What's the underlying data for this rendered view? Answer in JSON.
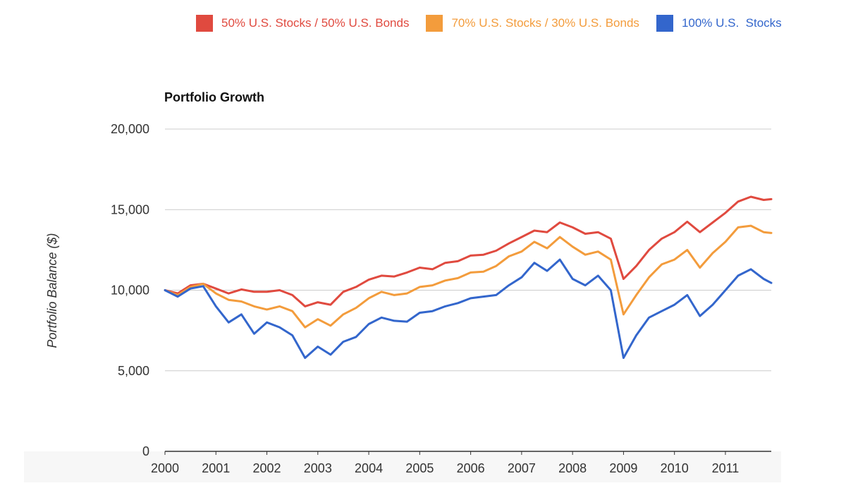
{
  "legend": [
    {
      "label": "50% U.S. Stocks / 50% U.S. Bonds",
      "color": "#e04a3f",
      "icon": "red-square"
    },
    {
      "label": "70% U.S. Stocks / 30% U.S. Bonds",
      "color": "#f39c3c",
      "icon": "orange-square"
    },
    {
      "label": "100% U.S.  Stocks",
      "color": "#3366cc",
      "icon": "blue-square"
    }
  ],
  "chart_data": {
    "type": "line",
    "title": "Portfolio Growth",
    "xlabel": "",
    "ylabel": "Portfolio Balance ($)",
    "ylim": [
      0,
      20000
    ],
    "xlim": [
      2000,
      2011.9
    ],
    "yticks": [
      0,
      5000,
      10000,
      15000,
      20000
    ],
    "ytick_labels": [
      "0",
      "5,000",
      "10,000",
      "15,000",
      "20,000"
    ],
    "xticks": [
      2000,
      2001,
      2002,
      2003,
      2004,
      2005,
      2006,
      2007,
      2008,
      2009,
      2010,
      2011
    ],
    "xtick_labels": [
      "2000",
      "2001",
      "2002",
      "2003",
      "2004",
      "2005",
      "2006",
      "2007",
      "2008",
      "2009",
      "2010",
      "2011"
    ],
    "grid": true,
    "x": [
      2000,
      2000.25,
      2000.5,
      2000.75,
      2001,
      2001.25,
      2001.5,
      2001.75,
      2002,
      2002.25,
      2002.5,
      2002.75,
      2003,
      2003.25,
      2003.5,
      2003.75,
      2004,
      2004.25,
      2004.5,
      2004.75,
      2005,
      2005.25,
      2005.5,
      2005.75,
      2006,
      2006.25,
      2006.5,
      2006.75,
      2007,
      2007.25,
      2007.5,
      2007.75,
      2008,
      2008.25,
      2008.5,
      2008.75,
      2009,
      2009.25,
      2009.5,
      2009.75,
      2010,
      2010.25,
      2010.5,
      2010.75,
      2011,
      2011.25,
      2011.5,
      2011.75,
      2011.9
    ],
    "series": [
      {
        "name": "50% U.S. Stocks / 50% U.S. Bonds",
        "color": "#e04a3f",
        "values": [
          10000,
          9800,
          10300,
          10400,
          10100,
          9800,
          10050,
          9900,
          9900,
          10000,
          9700,
          9000,
          9250,
          9100,
          9900,
          10200,
          10650,
          10900,
          10850,
          11100,
          11400,
          11300,
          11700,
          11800,
          12150,
          12200,
          12450,
          12900,
          13300,
          13700,
          13600,
          14200,
          13900,
          13500,
          13600,
          13200,
          10700,
          11500,
          12500,
          13200,
          13600,
          14250,
          13600,
          14200,
          14800,
          15500,
          15800,
          15600,
          15650
        ]
      },
      {
        "name": "70% U.S. Stocks / 30% U.S. Bonds",
        "color": "#f39c3c",
        "values": [
          10000,
          9700,
          10200,
          10400,
          9800,
          9400,
          9300,
          9000,
          8800,
          9000,
          8700,
          7700,
          8200,
          7800,
          8500,
          8900,
          9500,
          9900,
          9700,
          9800,
          10200,
          10300,
          10600,
          10750,
          11100,
          11150,
          11500,
          12100,
          12400,
          13000,
          12600,
          13300,
          12700,
          12200,
          12400,
          11900,
          8500,
          9700,
          10800,
          11600,
          11900,
          12500,
          11400,
          12300,
          13000,
          13900,
          14000,
          13600,
          13550
        ]
      },
      {
        "name": "100% U.S.  Stocks",
        "color": "#3366cc",
        "values": [
          10000,
          9600,
          10100,
          10250,
          9000,
          8000,
          8500,
          7300,
          8000,
          7700,
          7200,
          5800,
          6500,
          6000,
          6800,
          7100,
          7900,
          8300,
          8100,
          8050,
          8600,
          8700,
          9000,
          9200,
          9500,
          9600,
          9700,
          10300,
          10800,
          11700,
          11200,
          11900,
          10700,
          10300,
          10900,
          10000,
          5800,
          7200,
          8300,
          8700,
          9100,
          9700,
          8400,
          9100,
          10000,
          10900,
          11300,
          10700,
          10450
        ]
      }
    ]
  }
}
